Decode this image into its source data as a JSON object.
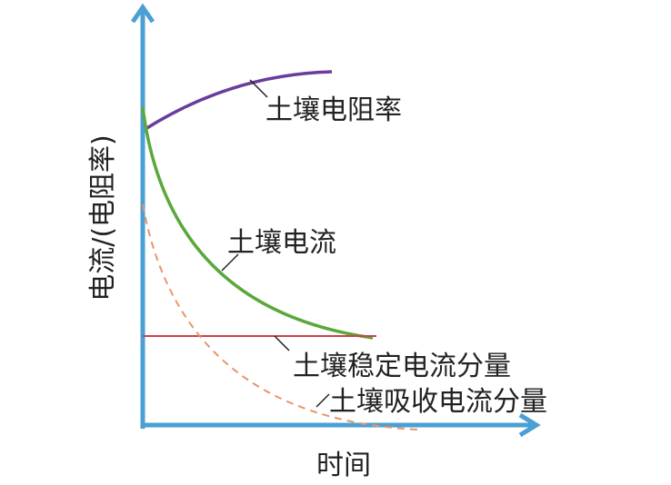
{
  "axes": {
    "x_label": "时间",
    "y_label": "电流/(电阻率)",
    "axis_color": "#4a9fd4"
  },
  "curves": [
    {
      "label": "土壤电阻率",
      "color": "#6a3d9a",
      "style": "solid",
      "trend": "rising, leveling off"
    },
    {
      "label": "土壤电流",
      "color": "#5aa83c",
      "style": "solid",
      "trend": "decaying toward steady value"
    },
    {
      "label": "土壤稳定电流分量",
      "color": "#d0404a",
      "style": "solid",
      "trend": "constant"
    },
    {
      "label": "土壤吸收电流分量",
      "color": "#e8956a",
      "style": "dashed",
      "trend": "decaying toward zero"
    }
  ]
}
